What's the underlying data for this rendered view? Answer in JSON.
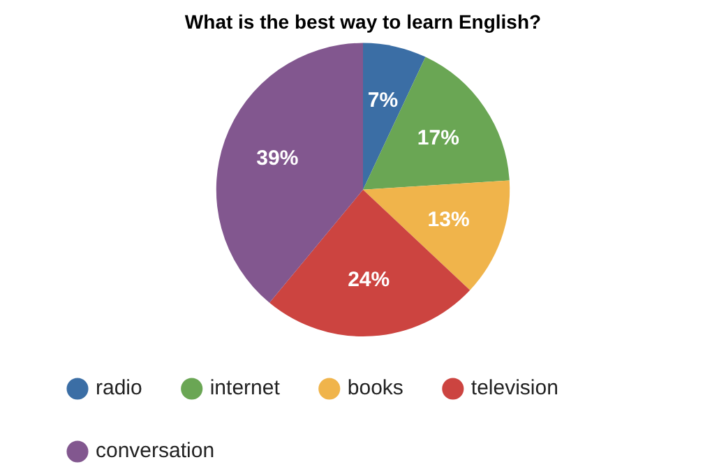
{
  "chart_data": {
    "type": "pie",
    "title": "What is the best way to learn English?",
    "categories": [
      "radio",
      "internet",
      "books",
      "television",
      "conversation"
    ],
    "values": [
      7,
      17,
      13,
      24,
      39
    ],
    "value_labels": [
      "7%",
      "17%",
      "13%",
      "24%",
      "39%"
    ],
    "colors": [
      "#3b6ea5",
      "#6aa654",
      "#f0b44b",
      "#cc4440",
      "#82578f"
    ],
    "legend": "bottom"
  }
}
